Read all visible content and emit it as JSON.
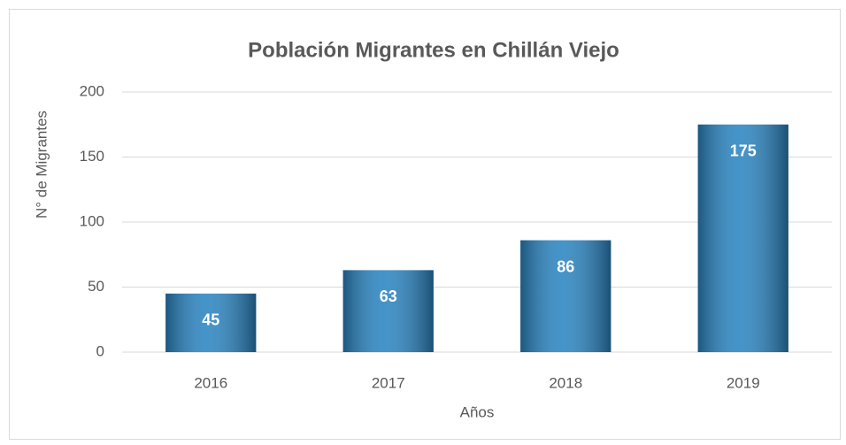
{
  "chart_data": {
    "type": "bar",
    "title": "Población Migrantes en Chillán Viejo",
    "x_label": "Años",
    "y_label": "N° de Migrantes",
    "categories": [
      "2016",
      "2017",
      "2018",
      "2019"
    ],
    "values": [
      45,
      63,
      86,
      175
    ],
    "color": "#2b85c2",
    "ylim": [
      0,
      200
    ],
    "yticks": [
      0,
      50,
      100,
      150,
      200
    ],
    "grid": true
  }
}
